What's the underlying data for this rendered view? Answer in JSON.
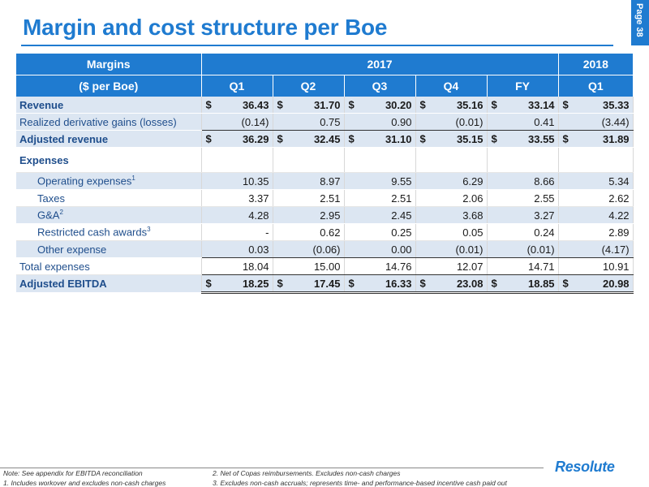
{
  "title": "Margin and cost structure per Boe",
  "page_label": "Page 38",
  "table": {
    "header_row1": {
      "label": "Margins",
      "group_2017": "2017",
      "group_2018": "2018"
    },
    "header_row2": {
      "label": "($ per Boe)",
      "cols": [
        "Q1",
        "Q2",
        "Q3",
        "Q4",
        "FY",
        "Q1"
      ]
    },
    "rows": [
      {
        "label": "Revenue",
        "currency": "$",
        "values": [
          "36.43",
          "31.70",
          "30.20",
          "35.16",
          "33.14",
          "35.33"
        ]
      },
      {
        "label": "Realized derivative gains (losses)",
        "values": [
          "(0.14)",
          "0.75",
          "0.90",
          "(0.01)",
          "0.41",
          "(3.44)"
        ]
      },
      {
        "label": "Adjusted revenue",
        "currency": "$",
        "values": [
          "36.29",
          "32.45",
          "31.10",
          "35.15",
          "33.55",
          "31.89"
        ]
      },
      {
        "label": "Expenses"
      },
      {
        "label": "Operating expenses",
        "sup": "1",
        "values": [
          "10.35",
          "8.97",
          "9.55",
          "6.29",
          "8.66",
          "5.34"
        ]
      },
      {
        "label": "Taxes",
        "values": [
          "3.37",
          "2.51",
          "2.51",
          "2.06",
          "2.55",
          "2.62"
        ]
      },
      {
        "label": "G&A",
        "sup": "2",
        "values": [
          "4.28",
          "2.95",
          "2.45",
          "3.68",
          "3.27",
          "4.22"
        ]
      },
      {
        "label": "Restricted cash awards",
        "sup": "3",
        "values": [
          "-",
          "0.62",
          "0.25",
          "0.05",
          "0.24",
          "2.89"
        ]
      },
      {
        "label": "Other expense",
        "values": [
          "0.03",
          "(0.06)",
          "0.00",
          "(0.01)",
          "(0.01)",
          "(4.17)"
        ]
      },
      {
        "label": "Total expenses",
        "values": [
          "18.04",
          "15.00",
          "14.76",
          "12.07",
          "14.71",
          "10.91"
        ]
      },
      {
        "label": "Adjusted EBITDA",
        "currency": "$",
        "values": [
          "18.25",
          "17.45",
          "16.33",
          "23.08",
          "18.85",
          "20.98"
        ]
      }
    ]
  },
  "footnotes": {
    "note": "Note: See appendix for EBITDA reconciliation",
    "n1": "1.     Includes workover and excludes non-cash charges",
    "n2": "2.     Net of Copas reimbursements. Excludes non-cash charges",
    "n3": "3.     Excludes non-cash accruals; represents time- and performance-based incentive cash paid out"
  },
  "logo_text": "Resolute",
  "colors": {
    "accent": "#1f7bd0",
    "row_shade": "#dce6f2",
    "label_text": "#1f4e8c"
  }
}
